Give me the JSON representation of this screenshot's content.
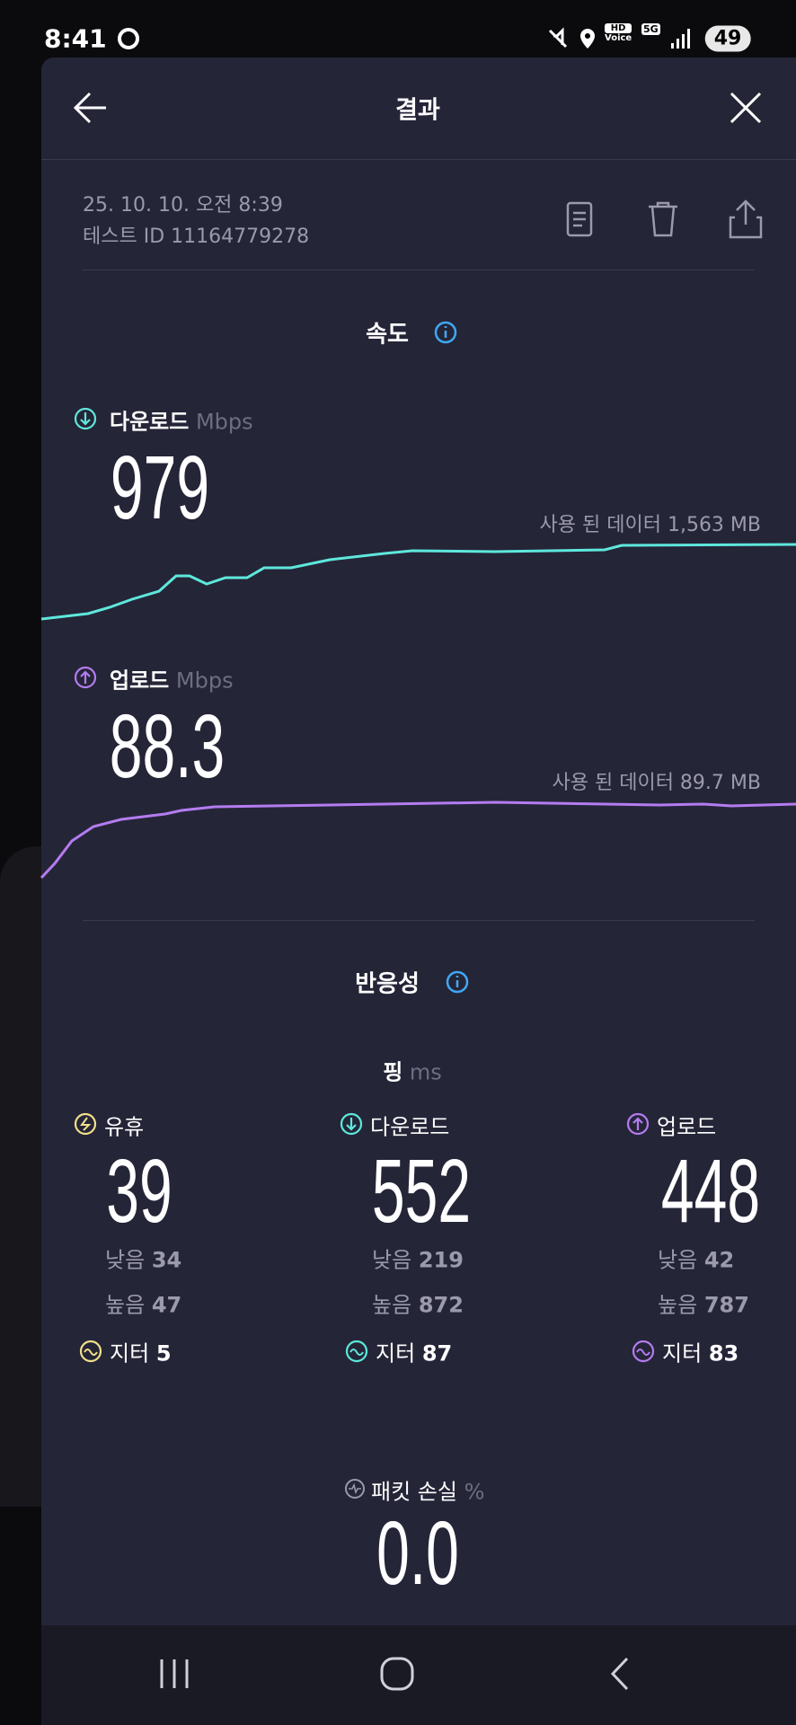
{
  "status_bar": {
    "time": "8:41",
    "hd": "HD",
    "voice": "Voice",
    "network": "5G",
    "battery": "49"
  },
  "header": {
    "title": "결과"
  },
  "test_info": {
    "datetime": "25. 10. 10. 오전 8:39",
    "test_id": "테스트 ID 11164779278"
  },
  "speed": {
    "title": "속도",
    "download": {
      "label": "다운로드",
      "unit": "Mbps",
      "value": 979,
      "data_used": "사용 된 데이터 1,563 MB"
    },
    "upload": {
      "label": "업로드",
      "unit": "Mbps",
      "value": 88.3,
      "data_used": "사용 된 데이터 89.7 MB"
    }
  },
  "responsiveness": {
    "title": "반응성",
    "ping_label": "핑",
    "ping_unit": "ms",
    "columns": [
      {
        "label": "유휴",
        "value": 39,
        "low_label": "낮음",
        "low": 34,
        "high_label": "높음",
        "high": 47,
        "jitter_label": "지터",
        "jitter": 5
      },
      {
        "label": "다운로드",
        "value": 552,
        "low_label": "낮음",
        "low": 219,
        "high_label": "높음",
        "high": 872,
        "jitter_label": "지터",
        "jitter": 87
      },
      {
        "label": "업로드",
        "value": 448,
        "low_label": "낮음",
        "low": 42,
        "high_label": "높음",
        "high": 787,
        "jitter_label": "지터",
        "jitter": 83
      }
    ]
  },
  "packet_loss": {
    "label": "패킷 손실",
    "unit": "%",
    "value": "0.0"
  }
}
